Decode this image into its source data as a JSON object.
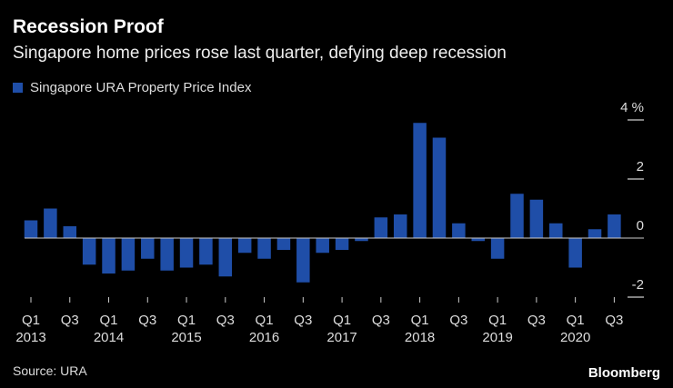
{
  "chart_data": {
    "type": "bar",
    "title": "Recession Proof",
    "subtitle": "Singapore home prices rose last quarter, defying deep recession",
    "legend": [
      "Singapore URA Property Price Index"
    ],
    "ylabel_unit": "%",
    "ylim": [
      -2,
      4
    ],
    "yticks": [
      "4 %",
      "2",
      "0",
      "-2"
    ],
    "ytick_values": [
      4,
      2,
      0,
      -2
    ],
    "categories": [
      "2013Q1",
      "2013Q2",
      "2013Q3",
      "2013Q4",
      "2014Q1",
      "2014Q2",
      "2014Q3",
      "2014Q4",
      "2015Q1",
      "2015Q2",
      "2015Q3",
      "2015Q4",
      "2016Q1",
      "2016Q2",
      "2016Q3",
      "2016Q4",
      "2017Q1",
      "2017Q2",
      "2017Q3",
      "2017Q4",
      "2018Q1",
      "2018Q2",
      "2018Q3",
      "2018Q4",
      "2019Q1",
      "2019Q2",
      "2019Q3",
      "2019Q4",
      "2020Q1",
      "2020Q2",
      "2020Q3"
    ],
    "values": [
      0.6,
      1.0,
      0.4,
      -0.9,
      -1.2,
      -1.1,
      -0.7,
      -1.1,
      -1.0,
      -0.9,
      -1.3,
      -0.5,
      -0.7,
      -0.4,
      -1.5,
      -0.5,
      -0.4,
      -0.1,
      0.7,
      0.8,
      3.9,
      3.4,
      0.5,
      -0.1,
      -0.7,
      1.5,
      1.3,
      0.5,
      -1.0,
      0.3,
      0.8
    ],
    "xtick_labels": [
      {
        "index": 0,
        "q": "Q1",
        "year": "2013"
      },
      {
        "index": 2,
        "q": "Q3",
        "year": ""
      },
      {
        "index": 4,
        "q": "Q1",
        "year": "2014"
      },
      {
        "index": 6,
        "q": "Q3",
        "year": ""
      },
      {
        "index": 8,
        "q": "Q1",
        "year": "2015"
      },
      {
        "index": 10,
        "q": "Q3",
        "year": ""
      },
      {
        "index": 12,
        "q": "Q1",
        "year": "2016"
      },
      {
        "index": 14,
        "q": "Q3",
        "year": ""
      },
      {
        "index": 16,
        "q": "Q1",
        "year": "2017"
      },
      {
        "index": 18,
        "q": "Q3",
        "year": ""
      },
      {
        "index": 20,
        "q": "Q1",
        "year": "2018"
      },
      {
        "index": 22,
        "q": "Q3",
        "year": ""
      },
      {
        "index": 24,
        "q": "Q1",
        "year": "2019"
      },
      {
        "index": 26,
        "q": "Q3",
        "year": ""
      },
      {
        "index": 28,
        "q": "Q1",
        "year": "2020"
      },
      {
        "index": 30,
        "q": "Q3",
        "year": ""
      }
    ],
    "color": "#1f4ea8"
  },
  "footer": {
    "source": "Source: URA",
    "brand": "Bloomberg"
  }
}
